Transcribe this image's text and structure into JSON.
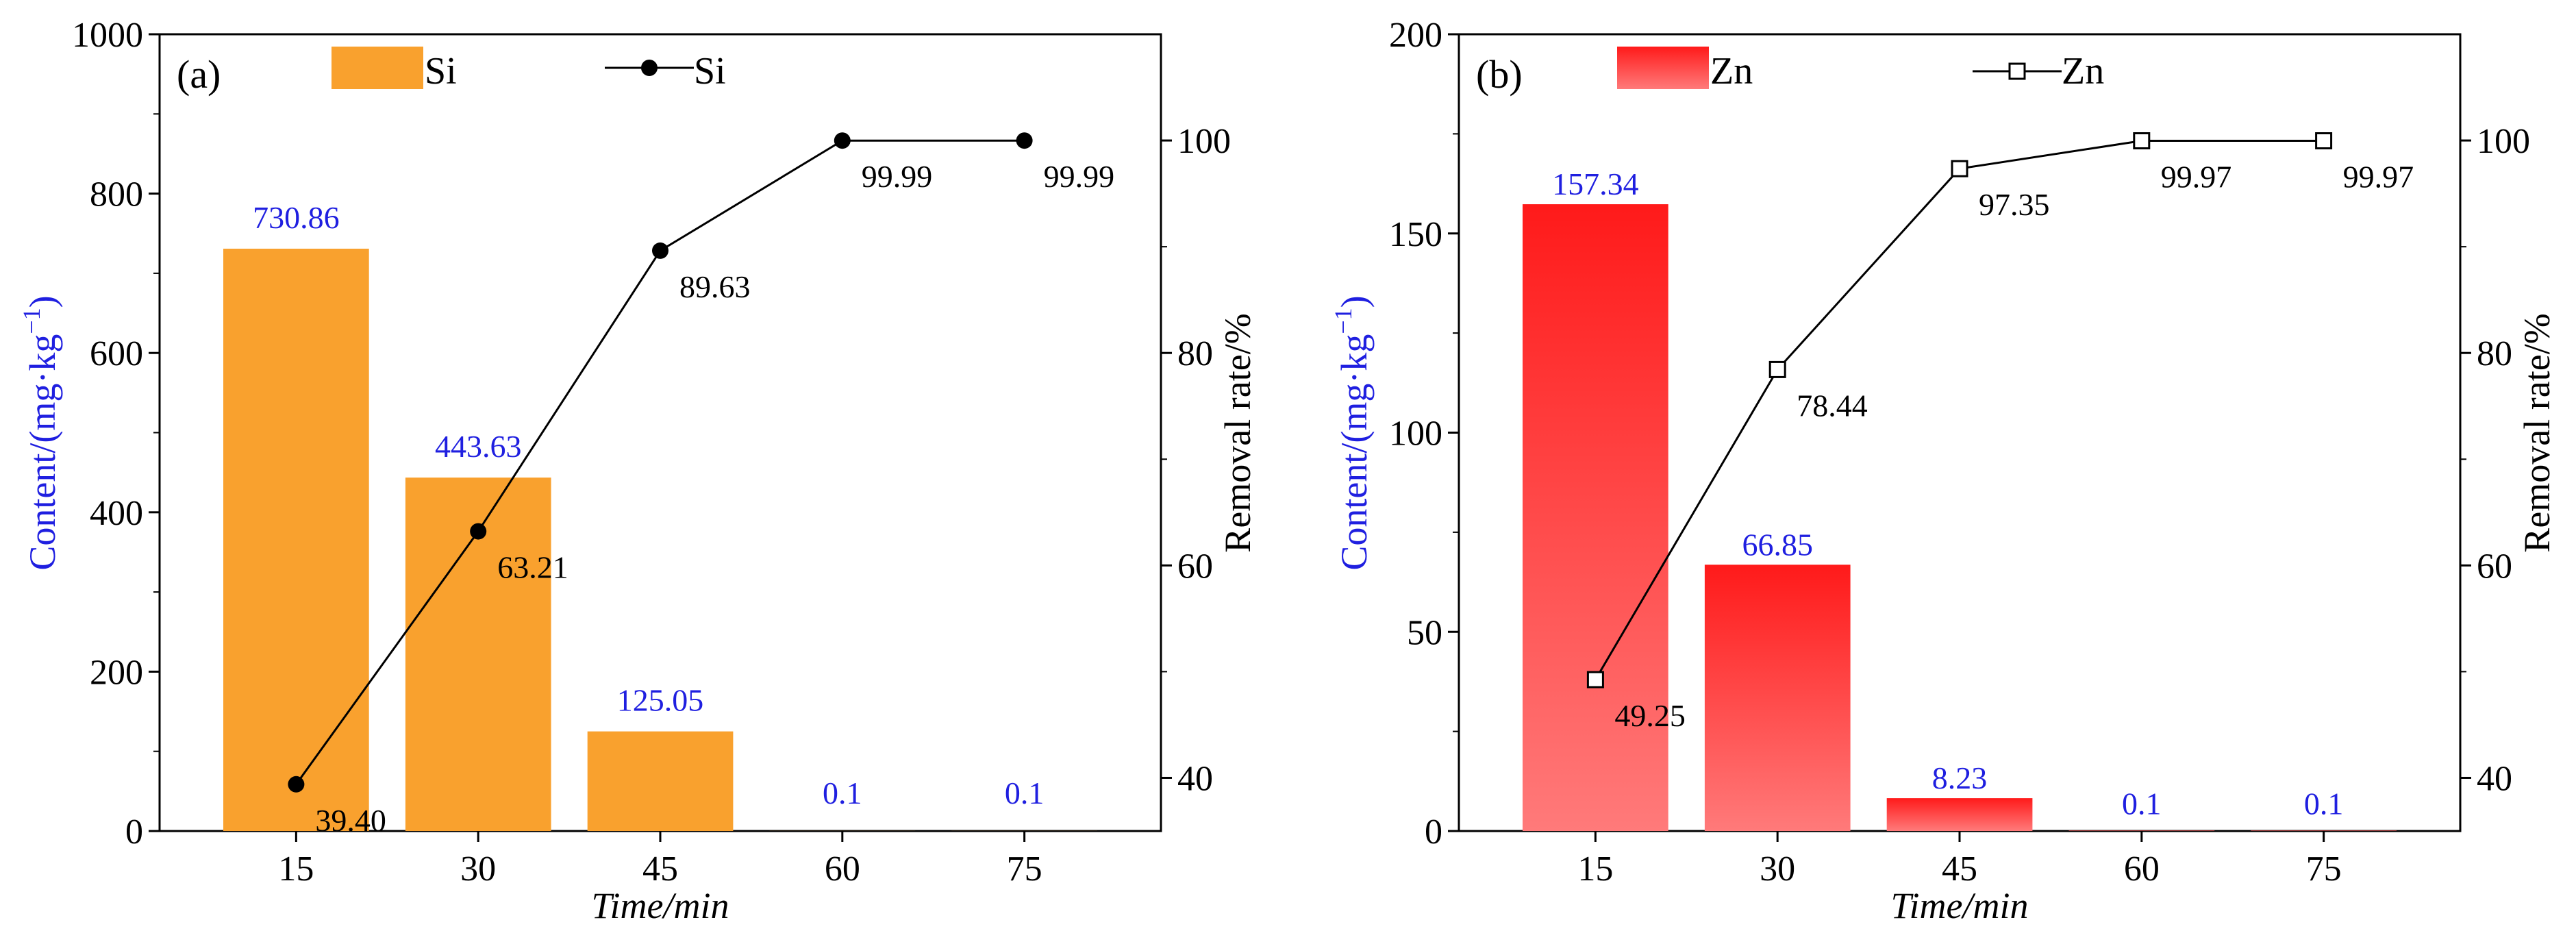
{
  "chart_data": [
    {
      "panel": "(a)",
      "type": "bar+line",
      "categories": [
        "15",
        "30",
        "45",
        "60",
        "75"
      ],
      "bar_series": {
        "name": "Si",
        "values": [
          730.86,
          443.63,
          125.05,
          0.1,
          0.1
        ],
        "labels": [
          "730.86",
          "443.63",
          "125.05",
          "0.1",
          "0.1"
        ],
        "color": "#F9A12E"
      },
      "line_series": {
        "name": "Si",
        "marker": "filled-circle",
        "values": [
          39.4,
          63.21,
          89.63,
          99.99,
          99.99
        ],
        "labels": [
          "39.40",
          "63.21",
          "89.63",
          "99.99",
          "99.99"
        ],
        "color": "#000000"
      },
      "xlabel": "Time/min",
      "ylabel": "Content/(mg·kg",
      "ylabel_sup": "−1",
      "ylabel_close": ")",
      "y2label": "Removal rate/%",
      "ylim": [
        0,
        1000
      ],
      "yticks": [
        0,
        200,
        400,
        600,
        800,
        1000
      ],
      "y2lim": [
        35,
        110
      ],
      "y2ticks": [
        40,
        60,
        80,
        100
      ]
    },
    {
      "panel": "(b)",
      "type": "bar+line",
      "categories": [
        "15",
        "30",
        "45",
        "60",
        "75"
      ],
      "bar_series": {
        "name": "Zn",
        "values": [
          157.34,
          66.85,
          8.23,
          0.1,
          0.1
        ],
        "labels": [
          "157.34",
          "66.85",
          "8.23",
          "0.1",
          "0.1"
        ],
        "color": "#FF1A1A",
        "color_light": "#FF7A7A"
      },
      "line_series": {
        "name": "Zn",
        "marker": "open-square",
        "values": [
          49.25,
          78.44,
          97.35,
          99.97,
          99.97
        ],
        "labels": [
          "49.25",
          "78.44",
          "97.35",
          "99.97",
          "99.97"
        ],
        "color": "#000000"
      },
      "xlabel": "Time/min",
      "ylabel": "Content/(mg·kg",
      "ylabel_sup": "−1",
      "ylabel_close": ")",
      "y2label": "Removal rate/%",
      "ylim": [
        0,
        200
      ],
      "yticks": [
        0,
        50,
        100,
        150,
        200
      ],
      "y2lim": [
        35,
        110
      ],
      "y2ticks": [
        40,
        60,
        80,
        100
      ]
    }
  ],
  "colors": {
    "value_label": "#1F1FE0",
    "ylabel": "#1F1FE0",
    "axis": "#000000"
  }
}
